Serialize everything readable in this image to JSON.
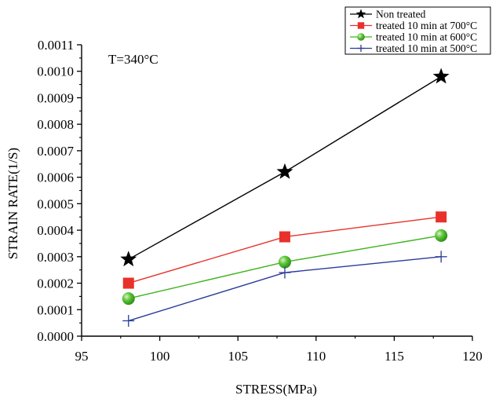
{
  "chart_data": {
    "type": "line",
    "xlabel": "STRESS(MPa)",
    "ylabel": "STRAIN RATE(1/S)",
    "annotation": "T=340°C",
    "xlim": [
      95,
      120
    ],
    "ylim": [
      0.0,
      0.0011
    ],
    "xticks": [
      "95",
      "100",
      "105",
      "110",
      "115",
      "120"
    ],
    "yticks": [
      "0.0000",
      "0.0001",
      "0.0002",
      "0.0003",
      "0.0004",
      "0.0005",
      "0.0006",
      "0.0007",
      "0.0008",
      "0.0009",
      "0.0010",
      "0.0011"
    ],
    "legend_position": "top-right",
    "grid": false,
    "series": [
      {
        "name": "Non treated",
        "color": "#000000",
        "marker": "star",
        "x": [
          98,
          108,
          118
        ],
        "y": [
          0.00029,
          0.00062,
          0.00098
        ]
      },
      {
        "name": "treated 10 min at 700°C",
        "color": "#e8312a",
        "marker": "square",
        "x": [
          98,
          108,
          118
        ],
        "y": [
          0.0002,
          0.000375,
          0.00045
        ]
      },
      {
        "name": "treated 10 min at 600°C",
        "color": "#3db31c",
        "marker": "sphere",
        "x": [
          98,
          108,
          118
        ],
        "y": [
          0.000142,
          0.00028,
          0.00038
        ]
      },
      {
        "name": "treated 10 min at 500°C",
        "color": "#2b3a9a",
        "marker": "plus",
        "x": [
          98,
          108,
          118
        ],
        "y": [
          5.8e-05,
          0.00024,
          0.0003
        ]
      }
    ]
  }
}
